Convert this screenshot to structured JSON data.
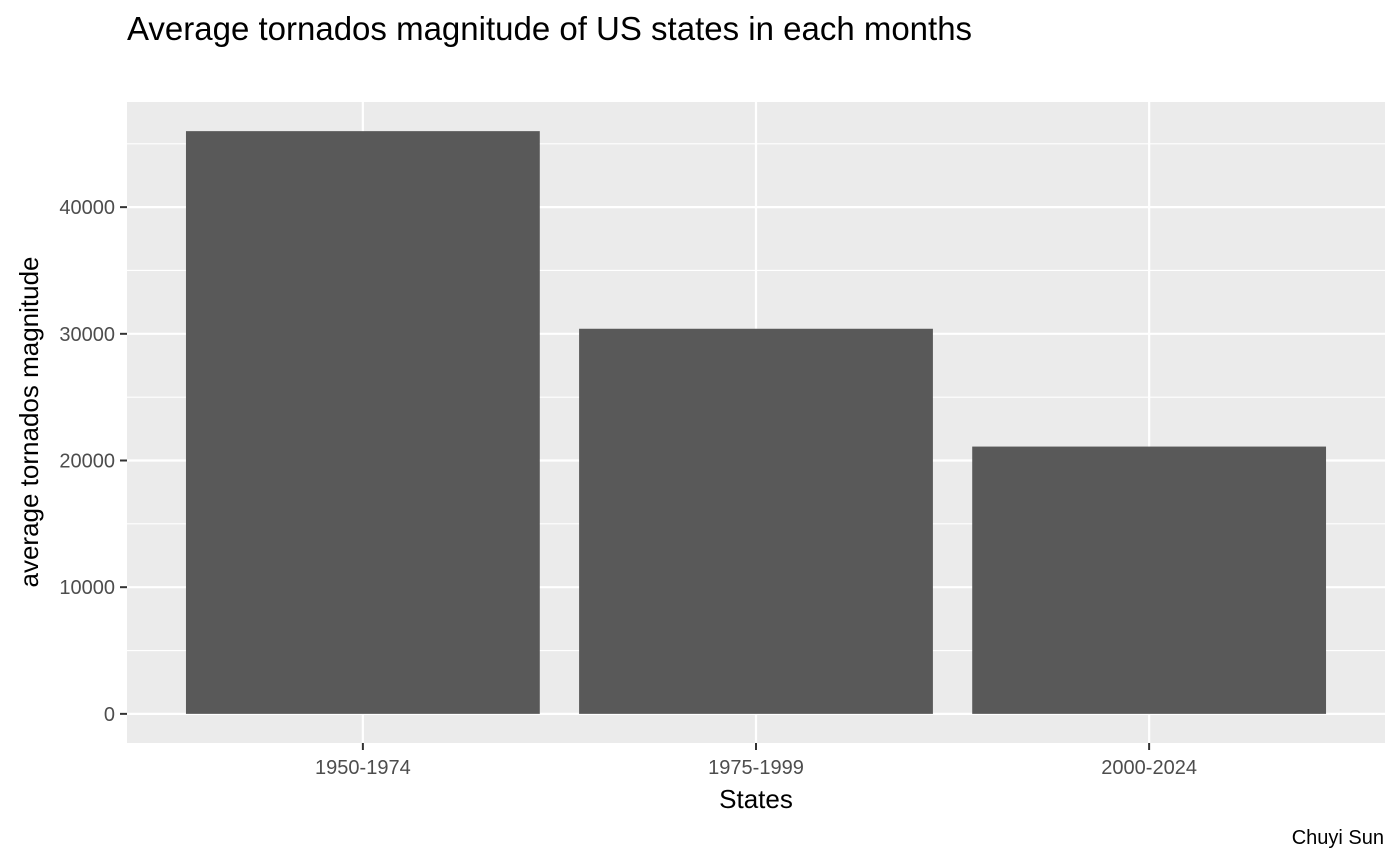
{
  "chart_data": {
    "type": "bar",
    "title": "Average tornados magnitude of US states in each months",
    "xlabel": "States",
    "ylabel": "average tornados magnitude",
    "caption": "Chuyi Sun",
    "categories": [
      "1950-1974",
      "1975-1999",
      "2000-2024"
    ],
    "values": [
      46000,
      30400,
      21100
    ],
    "ylim": [
      -2300,
      48300
    ],
    "yticks": [
      0,
      10000,
      20000,
      30000,
      40000
    ],
    "ytick_labels": [
      "0",
      "10000",
      "20000",
      "30000",
      "40000"
    ],
    "grid": true,
    "legend": "none",
    "colors": {
      "bar": "#595959",
      "panel": "#ebebeb",
      "grid": "#ffffff",
      "tick_text": "#4d4d4d",
      "tick_mark": "#333333"
    }
  }
}
